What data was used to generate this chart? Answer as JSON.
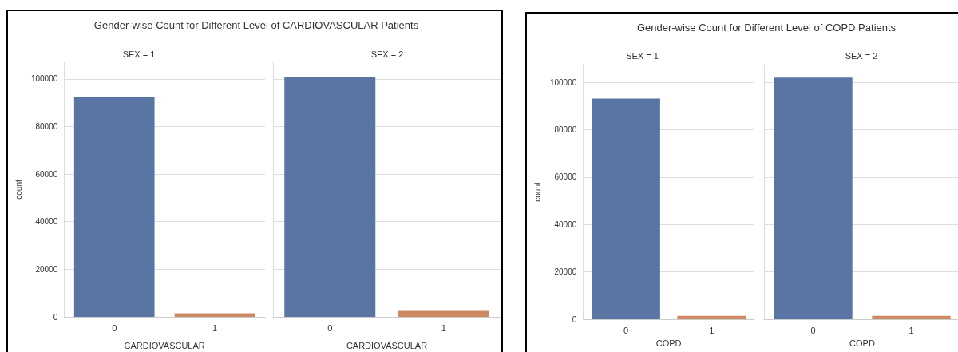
{
  "chart_data": [
    {
      "type": "bar",
      "title": "Gender-wise Count for Different Level of CARDIOVASCULAR Patients",
      "subtitle": "SEX = 1",
      "xlabel": "CARDIOVASCULAR",
      "ylabel": "count",
      "categories": [
        "0",
        "1"
      ],
      "values": [
        92500,
        1500
      ],
      "colors": [
        "#5975a4",
        "#cc8963"
      ],
      "ylim": [
        0,
        107000
      ],
      "yticks": [
        0,
        20000,
        40000,
        60000,
        80000,
        100000
      ],
      "grid": "y"
    },
    {
      "type": "bar",
      "subtitle": "SEX = 2",
      "xlabel": "CARDIOVASCULAR",
      "categories": [
        "0",
        "1"
      ],
      "values": [
        101000,
        2500
      ],
      "colors": [
        "#5975a4",
        "#cc8963"
      ],
      "ylim": [
        0,
        107000
      ],
      "yticks": [
        0,
        20000,
        40000,
        60000,
        80000,
        100000
      ],
      "grid": "y",
      "tick_labels": "x"
    },
    {
      "type": "bar",
      "title": "Gender-wise Count for Different Level of COPD Patients",
      "subtitle": "SEX = 1",
      "xlabel": "COPD",
      "ylabel": "count",
      "categories": [
        "0",
        "1"
      ],
      "values": [
        93200,
        1400
      ],
      "colors": [
        "#5975a4",
        "#cc8963"
      ],
      "ylim": [
        0,
        107500
      ],
      "yticks": [
        0,
        20000,
        40000,
        60000,
        80000,
        100000
      ],
      "grid": "y"
    },
    {
      "type": "bar",
      "subtitle": "SEX = 2",
      "xlabel": "COPD",
      "categories": [
        "0",
        "1"
      ],
      "values": [
        102000,
        1400
      ],
      "colors": [
        "#5975a4",
        "#cc8963"
      ],
      "ylim": [
        0,
        107500
      ],
      "yticks": [
        0,
        20000,
        40000,
        60000,
        80000,
        100000
      ],
      "grid": "y",
      "tick_labels": "x"
    }
  ]
}
